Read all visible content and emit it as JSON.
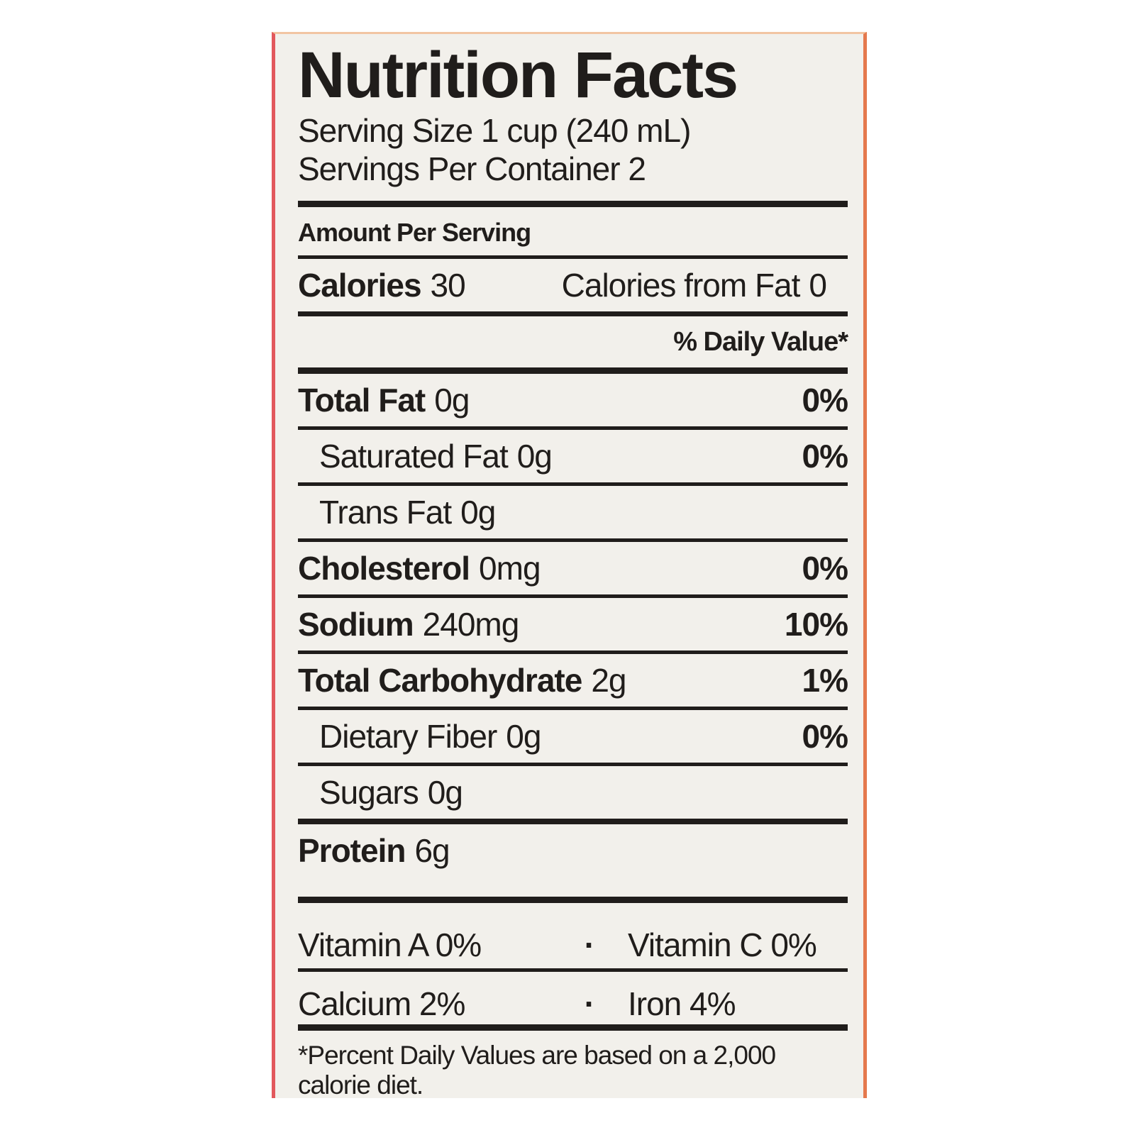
{
  "label": {
    "title": "Nutrition Facts",
    "serving_size": "Serving Size 1 cup (240 mL)",
    "servings_per_container": "Servings Per Container 2",
    "amount_per_serving": "Amount Per Serving",
    "calories": {
      "label": "Calories",
      "value": "30",
      "from_fat_label": "Calories from Fat",
      "from_fat_value": "0"
    },
    "daily_value_header": "% Daily Value*",
    "nutrients": [
      {
        "name": "Total Fat",
        "amount": "0g",
        "dv": "0%"
      },
      {
        "name": "Saturated Fat",
        "amount": "0g",
        "dv": "0%"
      },
      {
        "name": "Trans Fat",
        "amount": "0g",
        "dv": ""
      },
      {
        "name": "Cholesterol",
        "amount": "0mg",
        "dv": "0%"
      },
      {
        "name": "Sodium",
        "amount": "240mg",
        "dv": "10%"
      },
      {
        "name": "Total Carbohydrate",
        "amount": "2g",
        "dv": "1%"
      },
      {
        "name": "Dietary Fiber",
        "amount": "0g",
        "dv": "0%"
      },
      {
        "name": "Sugars",
        "amount": "0g",
        "dv": ""
      },
      {
        "name": "Protein",
        "amount": "6g",
        "dv": ""
      }
    ],
    "micronutrients": [
      {
        "left": "Vitamin A 0%",
        "separator": "·",
        "right": "Vitamin C 0%"
      },
      {
        "left": "Calcium 2%",
        "separator": "·",
        "right": "Iron 4%"
      }
    ],
    "footnote": "*Percent Daily Values are based on a 2,000 calorie diet."
  },
  "colors": {
    "label_background": "#f2f0eb",
    "text": "#201d1b",
    "rule": "#201d1b",
    "left_edge": "#e2585c",
    "right_edge": "#e5794d",
    "top_edge": "#f2c5a2",
    "page_background": "#ffffff"
  }
}
